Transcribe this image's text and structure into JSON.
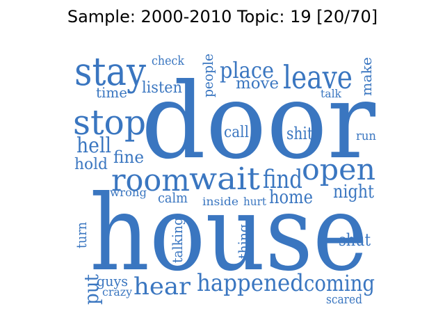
{
  "title": "Sample: 2000-2010 Topic: 19 [20/70]",
  "colors": {
    "word": "#3a76c0",
    "background": "#ffffff"
  },
  "words": [
    {
      "id": "door",
      "text": "door"
    },
    {
      "id": "house",
      "text": "house"
    },
    {
      "id": "stay",
      "text": "stay"
    },
    {
      "id": "stop",
      "text": "stop"
    },
    {
      "id": "leave",
      "text": "leave"
    },
    {
      "id": "place",
      "text": "place"
    },
    {
      "id": "move",
      "text": "move"
    },
    {
      "id": "room",
      "text": "room"
    },
    {
      "id": "wait",
      "text": "wait"
    },
    {
      "id": "find",
      "text": "find"
    },
    {
      "id": "open",
      "text": "open"
    },
    {
      "id": "hell",
      "text": "hell"
    },
    {
      "id": "hold",
      "text": "hold"
    },
    {
      "id": "fine",
      "text": "fine"
    },
    {
      "id": "check",
      "text": "check"
    },
    {
      "id": "time",
      "text": "time"
    },
    {
      "id": "listen",
      "text": "listen"
    },
    {
      "id": "people",
      "text": "people"
    },
    {
      "id": "make",
      "text": "make"
    },
    {
      "id": "talk",
      "text": "talk"
    },
    {
      "id": "call",
      "text": "call"
    },
    {
      "id": "shit",
      "text": "shit"
    },
    {
      "id": "run",
      "text": "run"
    },
    {
      "id": "night",
      "text": "night"
    },
    {
      "id": "home",
      "text": "home"
    },
    {
      "id": "wrong",
      "text": "wrong"
    },
    {
      "id": "calm",
      "text": "calm"
    },
    {
      "id": "inside",
      "text": "inside"
    },
    {
      "id": "hurt",
      "text": "hurt"
    },
    {
      "id": "turn",
      "text": "turn"
    },
    {
      "id": "talking",
      "text": "talking"
    },
    {
      "id": "thing",
      "text": "thing"
    },
    {
      "id": "shut",
      "text": "shut"
    },
    {
      "id": "put",
      "text": "put"
    },
    {
      "id": "guys",
      "text": "guys"
    },
    {
      "id": "crazy",
      "text": "crazy"
    },
    {
      "id": "hear",
      "text": "hear"
    },
    {
      "id": "happened",
      "text": "happened"
    },
    {
      "id": "coming",
      "text": "coming"
    },
    {
      "id": "scared",
      "text": "scared"
    }
  ]
}
